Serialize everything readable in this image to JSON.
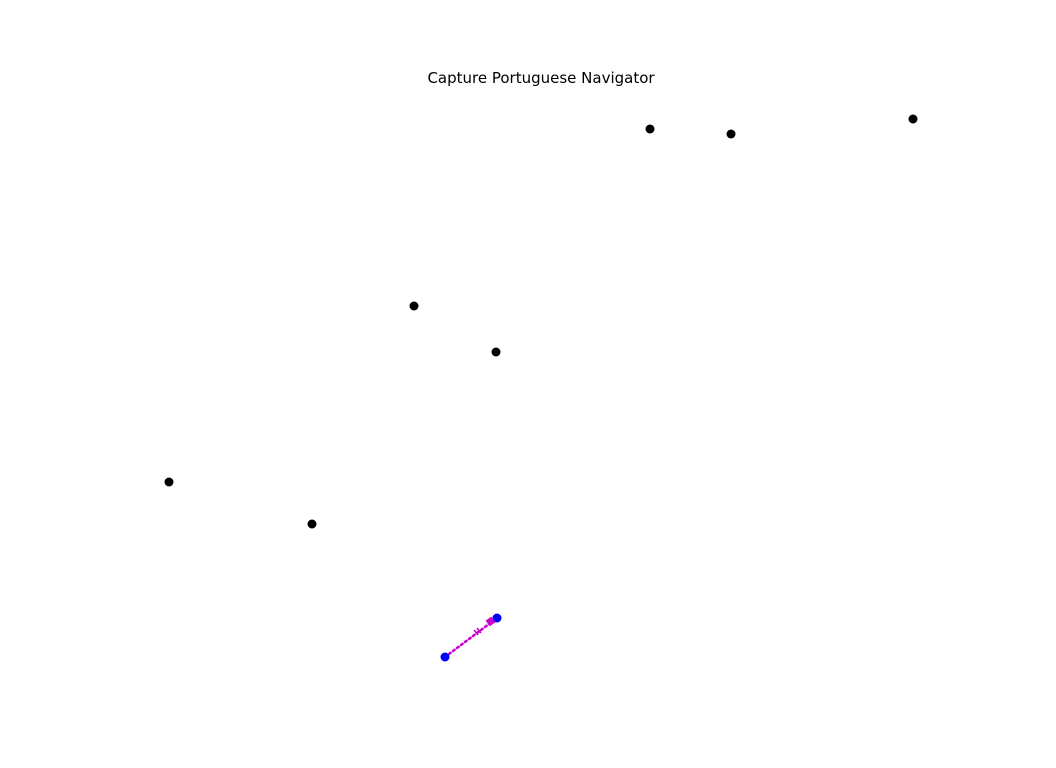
{
  "game": {
    "title": "Capture Portuguese Navigator"
  },
  "colors": {
    "background": "#ffffff",
    "point": "#000000",
    "player": "#0000ff",
    "path": "#cc00cc",
    "marker": "#cc00cc"
  },
  "icons": {
    "point": "black-dot-icon",
    "player": "blue-dot-icon",
    "path": "dotted-line",
    "marker": "magenta-square-icon"
  }
}
